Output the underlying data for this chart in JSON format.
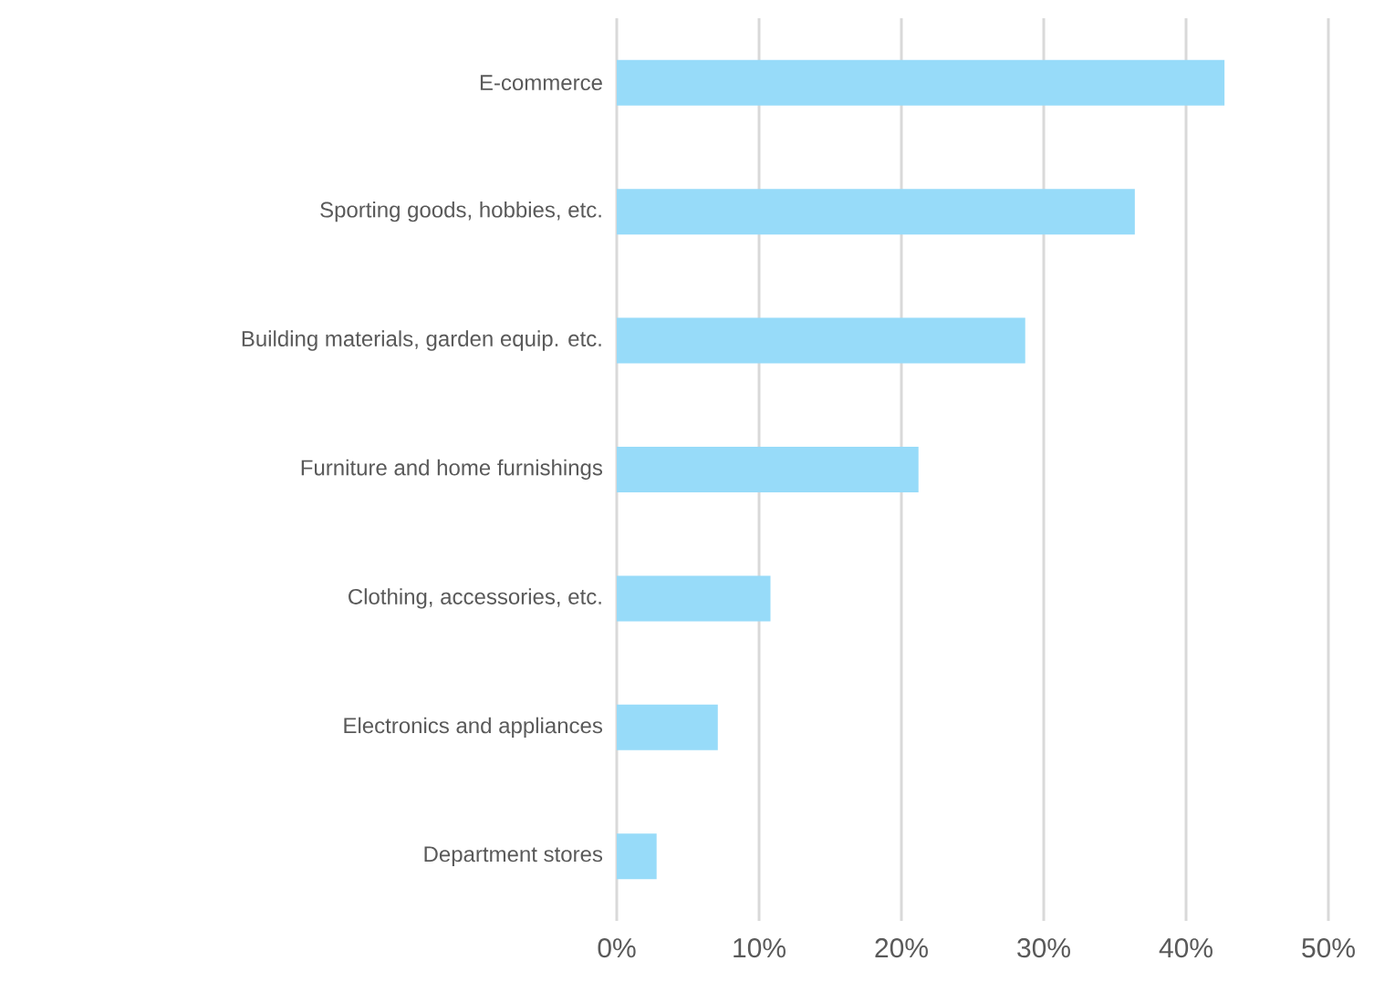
{
  "chart_data": {
    "type": "bar",
    "orientation": "horizontal",
    "categories": [
      "E-commerce",
      "Sporting goods, hobbies, etc.",
      "Building materials, garden equip. etc.",
      "Furniture and home furnishings",
      "Clothing, accessories, etc.",
      "Electronics and appliances",
      "Department stores"
    ],
    "values": [
      42.7,
      36.4,
      28.7,
      21.2,
      10.8,
      7.1,
      2.8
    ],
    "color": "#97dbf9",
    "xlim": [
      0,
      50
    ],
    "xticks": [
      {
        "value": 0,
        "label": "0%"
      },
      {
        "value": 10,
        "label": "10%"
      },
      {
        "value": 20,
        "label": "20%"
      },
      {
        "value": 30,
        "label": "30%"
      },
      {
        "value": 40,
        "label": "40%"
      },
      {
        "value": 50,
        "label": "50%"
      }
    ],
    "grid": "x"
  }
}
